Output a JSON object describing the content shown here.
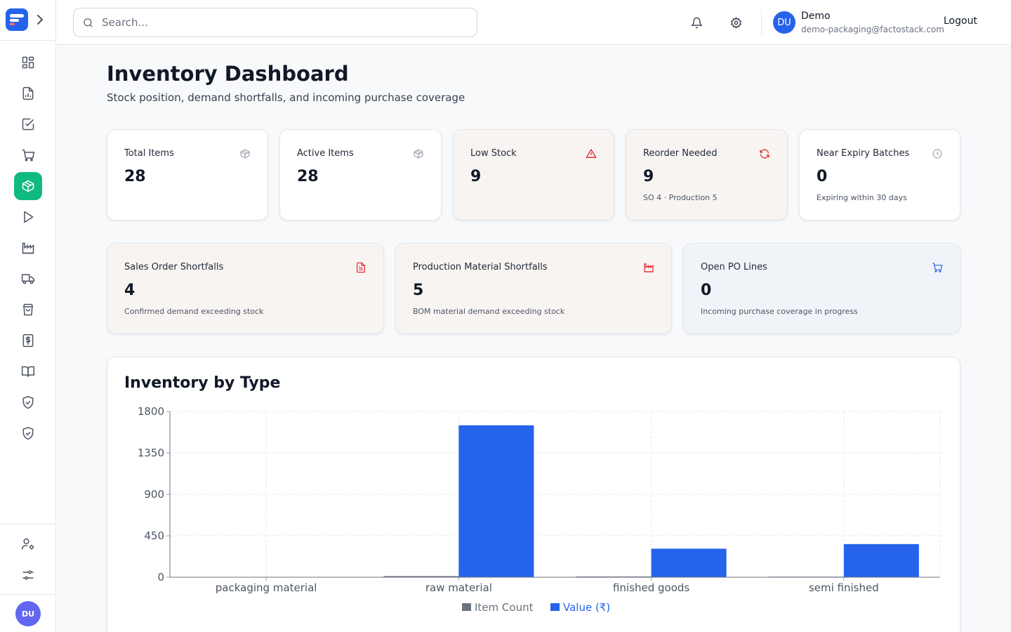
{
  "sidebar": {
    "expand_icon": "chevron-right-icon",
    "nav": [
      {
        "name": "dashboard",
        "icon": "grid-icon"
      },
      {
        "name": "reports",
        "icon": "file-chart-icon"
      },
      {
        "name": "tasks",
        "icon": "check-square-icon"
      },
      {
        "name": "purchase",
        "icon": "cart-icon"
      },
      {
        "name": "inventory",
        "icon": "package-icon",
        "active": true
      },
      {
        "name": "production",
        "icon": "play-icon"
      },
      {
        "name": "factory",
        "icon": "factory-icon"
      },
      {
        "name": "delivery",
        "icon": "truck-icon"
      },
      {
        "name": "sales",
        "icon": "shopping-bag-icon"
      },
      {
        "name": "finance",
        "icon": "dollar-icon"
      },
      {
        "name": "ledger",
        "icon": "book-icon"
      },
      {
        "name": "quality",
        "icon": "shield-check-icon"
      },
      {
        "name": "compliance",
        "icon": "shield-check-icon"
      }
    ],
    "bottom": [
      {
        "name": "user-settings",
        "icon": "user-cog-icon"
      },
      {
        "name": "preferences",
        "icon": "sliders-icon"
      }
    ],
    "avatar": "DU"
  },
  "header": {
    "search_placeholder": "Search...",
    "user_initials": "DU",
    "user_name": "Demo",
    "user_email": "demo-packaging@factostack.com",
    "logout": "Logout"
  },
  "page": {
    "title": "Inventory Dashboard",
    "subtitle": "Stock position, demand shortfalls, and incoming purchase coverage"
  },
  "stats_row1": [
    {
      "label": "Total Items",
      "value": "28",
      "sub": "",
      "icon": "box-icon",
      "tone": "neutral"
    },
    {
      "label": "Active Items",
      "value": "28",
      "sub": "",
      "icon": "box-icon",
      "tone": "neutral"
    },
    {
      "label": "Low Stock",
      "value": "9",
      "sub": "",
      "icon": "alert-triangle-icon",
      "tone": "warn"
    },
    {
      "label": "Reorder Needed",
      "value": "9",
      "sub": "SO 4 · Production 5",
      "icon": "refresh-icon",
      "tone": "warn"
    },
    {
      "label": "Near Expiry Batches",
      "value": "0",
      "sub": "Expiring within 30 days",
      "icon": "clock-icon",
      "tone": "neutral"
    }
  ],
  "stats_row2": [
    {
      "label": "Sales Order Shortfalls",
      "value": "4",
      "sub": "Confirmed demand exceeding stock",
      "icon": "file-text-icon",
      "tone": "warn"
    },
    {
      "label": "Production Material Shortfalls",
      "value": "5",
      "sub": "BOM material demand exceeding stock",
      "icon": "factory-icon",
      "tone": "warn"
    },
    {
      "label": "Open PO Lines",
      "value": "0",
      "sub": "Incoming purchase coverage in progress",
      "icon": "cart-icon",
      "tone": "info"
    }
  ],
  "colors": {
    "accent": "#10b981",
    "brand": "#2563eb",
    "warn_icon": "#dc2626",
    "info_icon": "#2563eb",
    "series_count": "#6b7280",
    "series_value": "#2563eb"
  },
  "chart_title": "Inventory by Type",
  "chart_data": {
    "type": "bar",
    "title": "Inventory by Type",
    "categories": [
      "packaging material",
      "raw material",
      "finished goods",
      "semi finished"
    ],
    "series": [
      {
        "name": "Item Count",
        "color": "#6b7280",
        "values": [
          0,
          12,
          8,
          6
        ]
      },
      {
        "name": "Value (₹)",
        "color": "#2563eb",
        "values": [
          0,
          1650,
          310,
          360
        ]
      }
    ],
    "yticks": [
      "0",
      "450",
      "900",
      "1350",
      "1800"
    ],
    "ylim": [
      0,
      1800
    ],
    "grid": true,
    "legend": "bottom"
  }
}
